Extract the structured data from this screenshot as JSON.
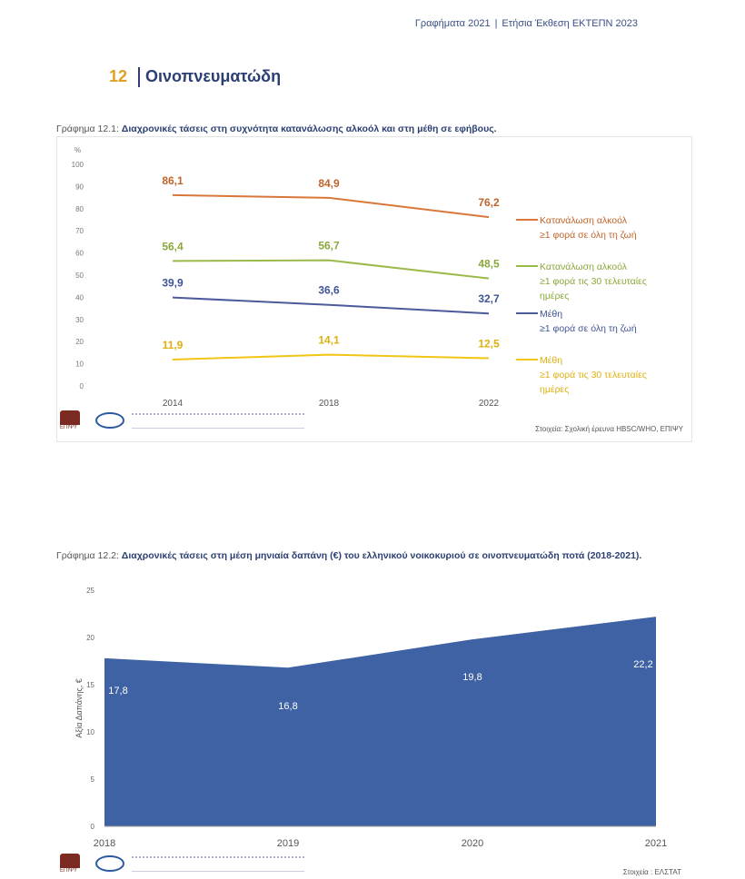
{
  "header": {
    "left": "Γραφήματα 2021",
    "right": "Ετήσια Έκθεση ΕΚΤΕΠΝ 2023"
  },
  "chapter": {
    "number": "12",
    "title": "Οινοπνευματώδη"
  },
  "chart_data": [
    {
      "type": "line",
      "title_prefix": "Γράφημα 12.1:",
      "title": "Διαχρονικές τάσεις στη συχνότητα κατανάλωσης αλκοόλ και στη μέθη σε εφήβους.",
      "ylabel": "%",
      "ylim": [
        0,
        100
      ],
      "yticks": [
        0,
        10,
        20,
        30,
        40,
        50,
        60,
        70,
        80,
        90,
        100
      ],
      "categories": [
        "2014",
        "2018",
        "2022"
      ],
      "series": [
        {
          "name": "Κατανάλωση αλκοόλ",
          "name2": "≥1 φορά σε όλη τη ζωή",
          "color": "#d9773a",
          "labelColor": "#c0642a",
          "values": [
            86.1,
            84.9,
            76.2
          ],
          "labels": [
            "86,1",
            "84,9",
            "76,2"
          ]
        },
        {
          "name": "Κατανάλωση αλκοόλ",
          "name2": "≥1 φορά τις 30 τελευταίες ημέρες",
          "color": "#9aba4a",
          "labelColor": "#8aa83a",
          "values": [
            56.4,
            56.7,
            48.5
          ],
          "labels": [
            "56,4",
            "56,7",
            "48,5"
          ]
        },
        {
          "name": "Μέθη",
          "name2": "≥1 φορά σε όλη τη ζωή",
          "color": "#4a5a9a",
          "labelColor": "#3f5596",
          "values": [
            39.9,
            36.6,
            32.7
          ],
          "labels": [
            "39,9",
            "36,6",
            "32,7"
          ]
        },
        {
          "name": "Μέθη",
          "name2": "≥1 φορά τις 30 τελευταίες ημέρες",
          "color": "#f2c515",
          "labelColor": "#e0b010",
          "values": [
            11.9,
            14.1,
            12.5
          ],
          "labels": [
            "11,9",
            "14,1",
            "12,5"
          ]
        }
      ],
      "source": "Στοιχεία: Σχολική έρευνα HBSC/WHO, ΕΠΙΨΥ",
      "logo_text": "ΕΠΙΨΥ"
    },
    {
      "type": "area",
      "title_prefix": "Γράφημα 12.2:",
      "title": "Διαχρονικές τάσεις στη μέση μηνιαία δαπάνη (€) του ελληνικού νοικοκυριού σε οινοπνευματώδη ποτά (2018-2021).",
      "ylabel": "Αξία Δαπάνης, €",
      "ylim": [
        0,
        25
      ],
      "yticks": [
        0,
        5,
        10,
        15,
        20,
        25
      ],
      "categories": [
        "2018",
        "2019",
        "2020",
        "2021"
      ],
      "values": [
        17.8,
        16.8,
        19.8,
        22.2
      ],
      "labels": [
        "17,8",
        "16,8",
        "19,8",
        "22,2"
      ],
      "color": "#3f62a4",
      "source": "Στοιχεία : ΕΛΣΤΑΤ",
      "logo_text": "ΕΠΙΨΥ"
    }
  ]
}
